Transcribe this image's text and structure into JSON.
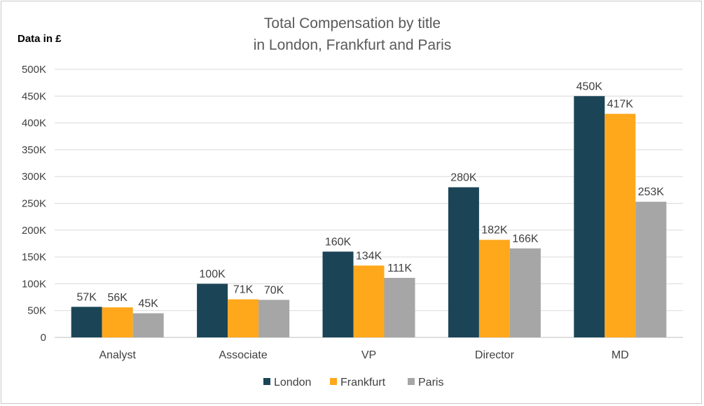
{
  "chart_data": {
    "type": "bar",
    "title_line1": "Total Compensation by title",
    "title_line2": "in London, Frankfurt and Paris",
    "unit_label": "Data in £",
    "categories": [
      "Analyst",
      "Associate",
      "VP",
      "Director",
      "MD"
    ],
    "series": [
      {
        "name": "London",
        "color": "#1b4557",
        "values": [
          57,
          100,
          160,
          280,
          450
        ],
        "labels": [
          "57K",
          "100K",
          "160K",
          "280K",
          "450K"
        ]
      },
      {
        "name": "Frankfurt",
        "color": "#ffa81c",
        "values": [
          56,
          71,
          134,
          182,
          417
        ],
        "labels": [
          "56K",
          "71K",
          "134K",
          "182K",
          "417K"
        ]
      },
      {
        "name": "Paris",
        "color": "#a6a6a6",
        "values": [
          45,
          70,
          111,
          166,
          253
        ],
        "labels": [
          "45K",
          "70K",
          "111K",
          "166K",
          "253K"
        ]
      }
    ],
    "y_ticks": [
      0,
      50,
      100,
      150,
      200,
      250,
      300,
      350,
      400,
      450,
      500
    ],
    "y_tick_labels": [
      "0",
      "50K",
      "100K",
      "150K",
      "200K",
      "250K",
      "300K",
      "350K",
      "400K",
      "450K",
      "500K"
    ],
    "ylim": [
      0,
      500
    ],
    "grid": true,
    "legend_position": "bottom"
  }
}
